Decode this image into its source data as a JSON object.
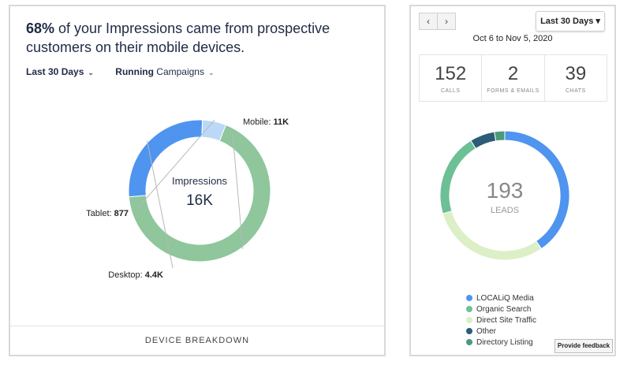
{
  "left_card": {
    "headline_pct": "68%",
    "headline_rest": " of your Impressions came from prospective customers on their mobile devices.",
    "filter_range": "Last 30 Days",
    "filter_status_bold": "Running",
    "filter_status_rest": " Campaigns",
    "footer": "DEVICE BREAKDOWN"
  },
  "right_card": {
    "prev_icon": "chevron-left-icon",
    "next_icon": "chevron-right-icon",
    "range_dropdown": "Last 30 Days ▾",
    "date_range": "Oct 6 to Nov 5, 2020",
    "stats": [
      {
        "value": "152",
        "label": "CALLS"
      },
      {
        "value": "2",
        "label": "FORMS & EMAILS"
      },
      {
        "value": "39",
        "label": "CHATS"
      }
    ],
    "feedback": "Provide feedback"
  },
  "colors": {
    "mobile": "#8fc69c",
    "desktop": "#4f94ef",
    "tablet": "#bcd8f7",
    "localiq": "#4f94ef",
    "organic": "#6dbf96",
    "direct": "#dcefc6",
    "other": "#2b5d78",
    "directory": "#4c9a79"
  },
  "chart_data": [
    {
      "type": "pie",
      "title": "Device Breakdown",
      "center_label": "Impressions",
      "center_value": "16K",
      "slices": [
        {
          "name": "Mobile",
          "display": "11K",
          "value": 11000,
          "color_key": "mobile"
        },
        {
          "name": "Desktop",
          "display": "4.4K",
          "value": 4400,
          "color_key": "desktop"
        },
        {
          "name": "Tablet",
          "display": "877",
          "value": 877,
          "color_key": "tablet"
        }
      ]
    },
    {
      "type": "pie",
      "center_value": "193",
      "center_label": "LEADS",
      "slices": [
        {
          "name": "LOCALiQ Media",
          "value": 78,
          "color_key": "localiq"
        },
        {
          "name": "Direct Site Traffic",
          "value": 58,
          "color_key": "direct"
        },
        {
          "name": "Organic Search",
          "value": 40,
          "color_key": "organic"
        },
        {
          "name": "Other",
          "value": 12,
          "color_key": "other"
        },
        {
          "name": "Directory Listing",
          "value": 5,
          "color_key": "directory"
        }
      ],
      "legend": [
        "LOCALiQ Media",
        "Organic Search",
        "Direct Site Traffic",
        "Other",
        "Directory Listing"
      ]
    }
  ]
}
